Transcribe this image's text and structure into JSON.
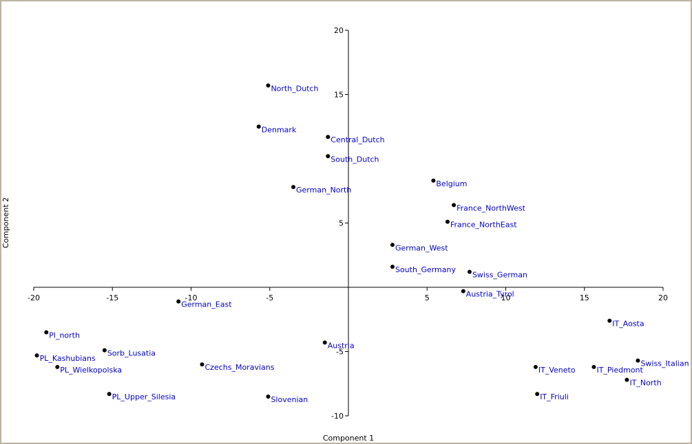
{
  "chart_data": {
    "type": "scatter",
    "title": "",
    "xlabel": "Component 1",
    "ylabel": "Component 2",
    "xlim": [
      -20,
      20
    ],
    "ylim": [
      -10,
      20
    ],
    "xticks": [
      -20,
      -15,
      -10,
      -5,
      5,
      10,
      15,
      20
    ],
    "xtick_labels": [
      "-20",
      "-15",
      "-10",
      "-5",
      "5",
      "10",
      "15",
      "20"
    ],
    "yticks": [
      20,
      15,
      5,
      -5,
      -10
    ],
    "ytick_labels": [
      "20",
      "15",
      "5",
      "-5",
      "-10"
    ],
    "grid": false,
    "colors": {
      "point": "#000000",
      "label": "#0000cc",
      "axis": "#000000",
      "border": "#bdb39e"
    },
    "points": [
      {
        "label": "North_Dutch",
        "x": -5.1,
        "y": 15.7
      },
      {
        "label": "Denmark",
        "x": -5.7,
        "y": 12.5
      },
      {
        "label": "Central_Dutch",
        "x": -1.3,
        "y": 11.7
      },
      {
        "label": "South_Dutch",
        "x": -1.3,
        "y": 10.2
      },
      {
        "label": "German_North",
        "x": -3.5,
        "y": 7.8
      },
      {
        "label": "Belgium",
        "x": 5.4,
        "y": 8.3
      },
      {
        "label": "France_NorthWest",
        "x": 6.7,
        "y": 6.4
      },
      {
        "label": "France_NorthEast",
        "x": 6.3,
        "y": 5.1
      },
      {
        "label": "German_West",
        "x": 2.8,
        "y": 3.3
      },
      {
        "label": "South_Germany",
        "x": 2.8,
        "y": 1.6
      },
      {
        "label": "Swiss_German",
        "x": 7.7,
        "y": 1.2
      },
      {
        "label": "Austria_Tyrol",
        "x": 7.3,
        "y": -0.3
      },
      {
        "label": "German_East",
        "x": -10.8,
        "y": -1.1
      },
      {
        "label": "Pl_north",
        "x": -19.2,
        "y": -3.5
      },
      {
        "label": "PL_Kashubians",
        "x": -19.8,
        "y": -5.3
      },
      {
        "label": "Sorb_Lusatia",
        "x": -15.5,
        "y": -4.9
      },
      {
        "label": "PL_Wielkopolska",
        "x": -18.5,
        "y": -6.2
      },
      {
        "label": "PL_Upper_Silesia",
        "x": -15.2,
        "y": -8.3
      },
      {
        "label": "Czechs_Moravians",
        "x": -9.3,
        "y": -6.0
      },
      {
        "label": "Austria",
        "x": -1.5,
        "y": -4.3
      },
      {
        "label": "Slovenian",
        "x": -5.1,
        "y": -8.5
      },
      {
        "label": "IT_Aosta",
        "x": 16.6,
        "y": -2.6
      },
      {
        "label": "Swiss_Italian",
        "x": 18.4,
        "y": -5.7
      },
      {
        "label": "IT_Veneto",
        "x": 11.9,
        "y": -6.2
      },
      {
        "label": "IT_Piedmont",
        "x": 15.6,
        "y": -6.2
      },
      {
        "label": "IT_North",
        "x": 17.7,
        "y": -7.2
      },
      {
        "label": "IT_Friuli",
        "x": 12.0,
        "y": -8.3
      }
    ]
  }
}
